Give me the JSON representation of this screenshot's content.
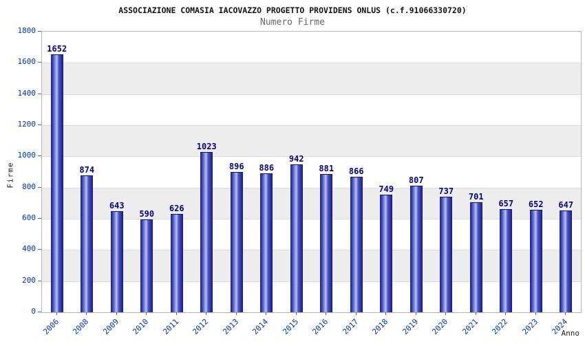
{
  "chart_data": {
    "type": "bar",
    "title": "ASSOCIAZIONE COMASIA IACOVAZZO PROGETTO PROVIDENS ONLUS (c.f.91066330720)",
    "subtitle": "Numero Firme",
    "xlabel": "Anno",
    "ylabel": "Firme",
    "ylim": [
      0,
      1800
    ],
    "ytick_step": 200,
    "grid": true,
    "legend": "none",
    "categories": [
      "2006",
      "2008",
      "2009",
      "2010",
      "2011",
      "2012",
      "2013",
      "2014",
      "2015",
      "2016",
      "2017",
      "2018",
      "2019",
      "2020",
      "2021",
      "2022",
      "2023",
      "2024"
    ],
    "values": [
      1652,
      874,
      643,
      590,
      626,
      1023,
      896,
      886,
      942,
      881,
      866,
      749,
      807,
      737,
      701,
      657,
      652,
      647
    ],
    "colors": {
      "bar_dark": "#18188c",
      "bar_mid": "#4b55c0",
      "bar_light": "#b8c2f2",
      "bar_cap": "#10106e",
      "value_label": "#00008b",
      "axis_text": "#0033cc",
      "band": "#ededed",
      "gridline": "#dcdcdc"
    }
  }
}
